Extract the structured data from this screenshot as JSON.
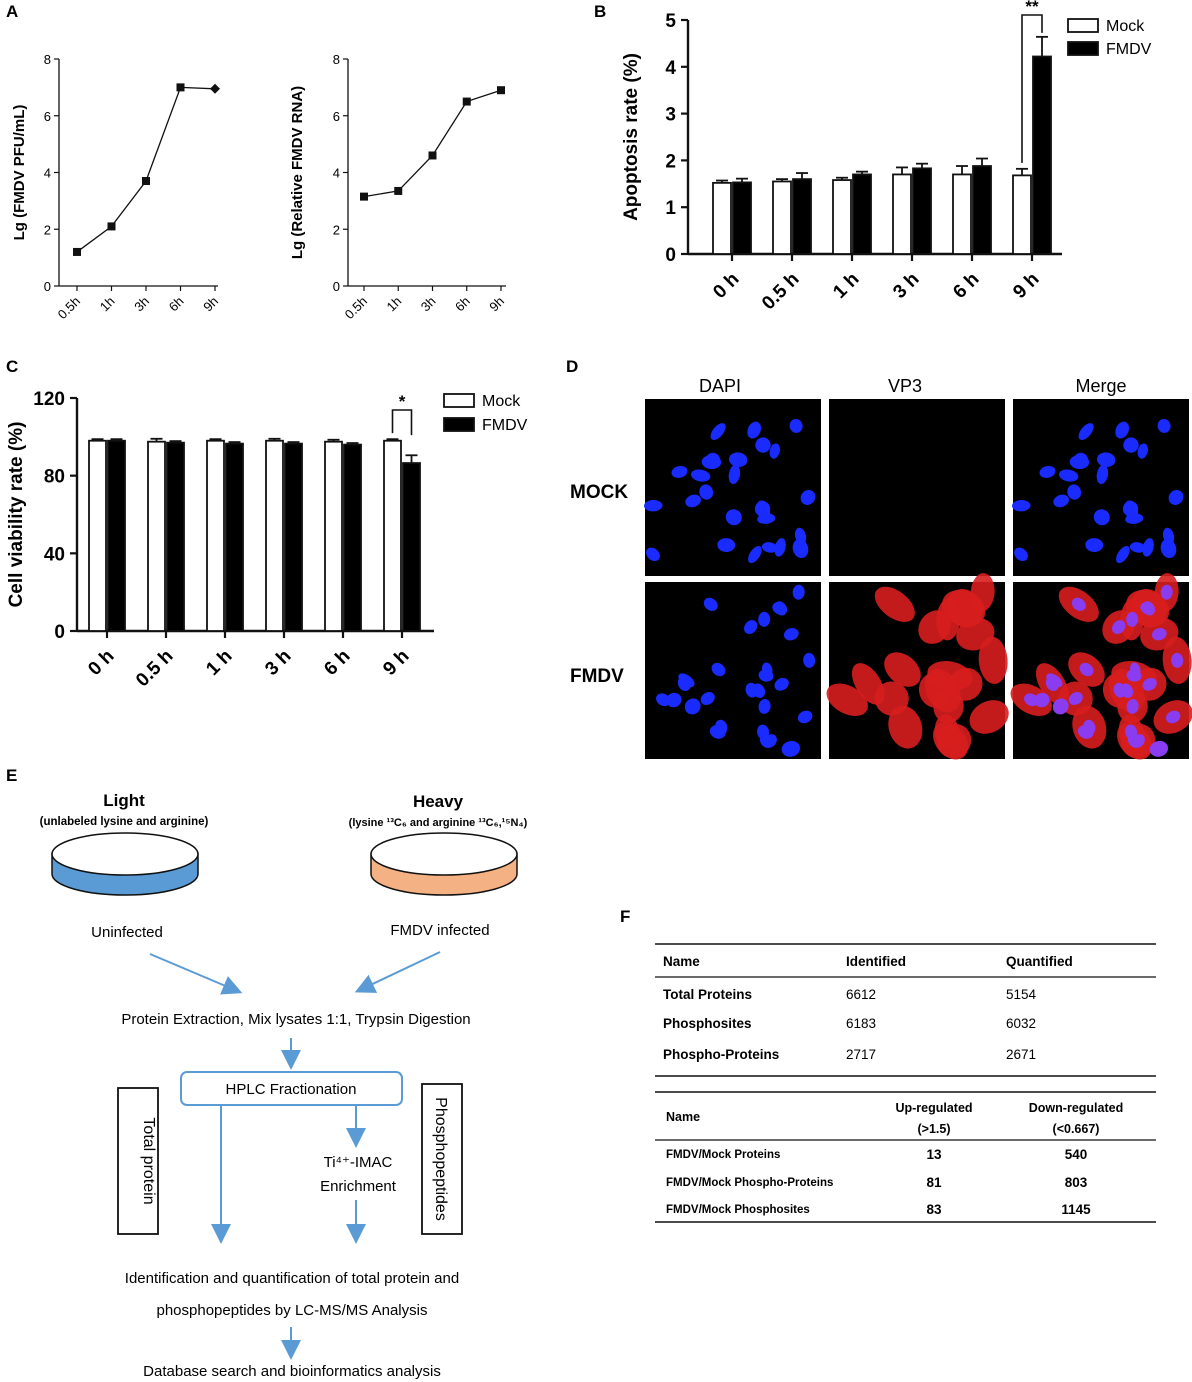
{
  "panel_labels": {
    "A": "A",
    "B": "B",
    "C": "C",
    "D": "D",
    "E": "E",
    "F": "F"
  },
  "chart_data": [
    {
      "id": "A1",
      "type": "line",
      "x": [
        "0.5h",
        "1h",
        "3h",
        "6h",
        "9h"
      ],
      "series": [
        {
          "values": [
            1.2,
            2.1,
            3.7,
            7.0,
            6.95
          ]
        }
      ],
      "ylabel": "Lg (FMDV PFU/mL)",
      "ylim": [
        0,
        8
      ],
      "yticks": [
        "0",
        "2",
        "4",
        "6",
        "8"
      ]
    },
    {
      "id": "A2",
      "type": "line",
      "x": [
        "0.5h",
        "1h",
        "3h",
        "6h",
        "9h"
      ],
      "series": [
        {
          "values": [
            3.15,
            3.35,
            4.6,
            6.5,
            6.9
          ]
        }
      ],
      "ylabel": "Lg (Relative FMDV RNA)",
      "ylim": [
        0,
        8
      ],
      "yticks": [
        "0",
        "2",
        "4",
        "6",
        "8"
      ]
    },
    {
      "id": "B",
      "type": "bar",
      "categories": [
        "0 h",
        "0.5 h",
        "1 h",
        "3 h",
        "6 h",
        "9 h"
      ],
      "series": [
        {
          "name": "Mock",
          "values": [
            1.52,
            1.55,
            1.58,
            1.7,
            1.7,
            1.68
          ],
          "errors": [
            0.05,
            0.05,
            0.05,
            0.15,
            0.18,
            0.14
          ]
        },
        {
          "name": "FMDV",
          "values": [
            1.53,
            1.6,
            1.7,
            1.83,
            1.88,
            4.22
          ],
          "errors": [
            0.08,
            0.13,
            0.06,
            0.1,
            0.16,
            0.42
          ]
        }
      ],
      "ylabel": "Apoptosis rate (%)",
      "ylim": [
        0,
        5
      ],
      "yticks": [
        "0",
        "1",
        "2",
        "3",
        "4",
        "5"
      ],
      "significance": "**",
      "legend": "top-right"
    },
    {
      "id": "C",
      "type": "bar",
      "categories": [
        "0 h",
        "0.5 h",
        "1 h",
        "3 h",
        "6 h",
        "9 h"
      ],
      "series": [
        {
          "name": "Mock",
          "values": [
            98.0,
            97.5,
            98.0,
            98.0,
            97.5,
            98.0
          ],
          "errors": [
            0.8,
            1.5,
            0.8,
            1.0,
            1.0,
            0.8
          ]
        },
        {
          "name": "FMDV",
          "values": [
            98.0,
            97.0,
            96.5,
            96.5,
            96.0,
            86.5
          ],
          "errors": [
            0.8,
            0.8,
            0.8,
            0.8,
            0.8,
            4.0
          ]
        }
      ],
      "ylabel": "Cell viability rate (%)",
      "ylim": [
        0,
        120
      ],
      "yticks": [
        "0",
        "40",
        "80",
        "120"
      ],
      "significance": "*",
      "legend": "top-right"
    }
  ],
  "micrographs": {
    "columns": [
      "DAPI",
      "VP3",
      "Merge"
    ],
    "rows": [
      "MOCK",
      "FMDV"
    ]
  },
  "flowchart": {
    "light_title": "Light",
    "light_sub": "(unlabeled lysine and arginine)",
    "light_caption": "Uninfected",
    "heavy_title": "Heavy",
    "heavy_sub": "(lysine ¹³C₆ and arginine ¹³C₆,¹⁵N₄)",
    "heavy_caption": "FMDV infected",
    "step1": "Protein Extraction, Mix lysates 1:1, Trypsin Digestion",
    "hplc": "HPLC Fractionation",
    "total_protein": "Total protein",
    "phosphopeptides": "Phosphopeptides",
    "enrich_line1": "Ti⁴⁺-IMAC",
    "enrich_line2": "Enrichment",
    "ident_line1": "Identification and quantification of total protein and",
    "ident_line2": "phosphopeptides by LC-MS/MS Analysis",
    "database": "Database search and bioinformatics analysis",
    "light_color": "#5b9bd5",
    "heavy_color": "#f4b183",
    "arrow_color": "#5b9bd5"
  },
  "table1": {
    "headers": [
      "Name",
      "Identified",
      "Quantified"
    ],
    "rows": [
      [
        "Total Proteins",
        "6612",
        "5154"
      ],
      [
        "Phosphosites",
        "6183",
        "6032"
      ],
      [
        "Phospho-Proteins",
        "2717",
        "2671"
      ]
    ]
  },
  "table2": {
    "headers": [
      "Name",
      "Up-regulated",
      "(>1.5)",
      "Down-regulated",
      "(<0.667)"
    ],
    "rows": [
      [
        "FMDV/Mock Proteins",
        "13",
        "540"
      ],
      [
        "FMDV/Mock Phospho-Proteins",
        "81",
        "803"
      ],
      [
        "FMDV/Mock Phosphosites",
        "83",
        "1145"
      ]
    ]
  }
}
